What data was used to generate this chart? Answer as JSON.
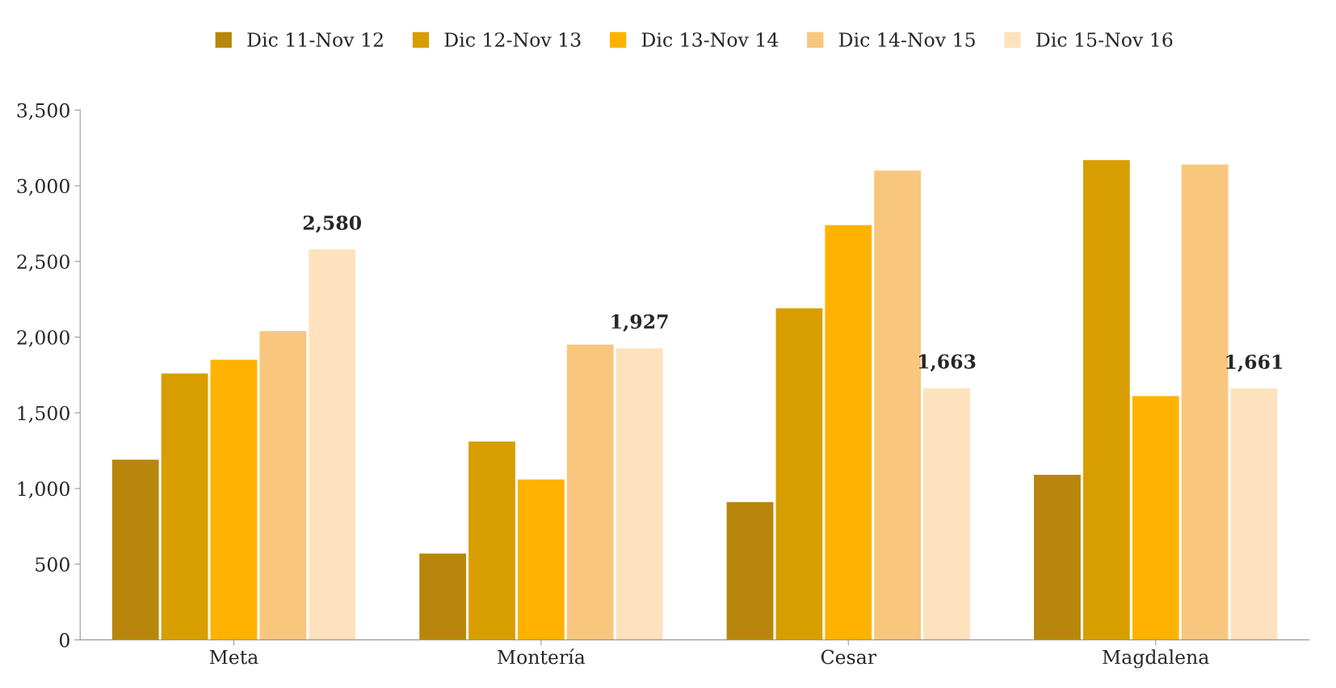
{
  "chart_data": {
    "type": "bar",
    "categories": [
      "Meta",
      "Montería",
      "Cesar",
      "Magdalena"
    ],
    "series": [
      {
        "name": "Dic 11-Nov 12",
        "color": "#b8860b",
        "values": [
          1190,
          570,
          910,
          1090
        ]
      },
      {
        "name": "Dic 12-Nov 13",
        "color": "#d89e00",
        "values": [
          1760,
          1310,
          2190,
          3170
        ]
      },
      {
        "name": "Dic 13-Nov 14",
        "color": "#ffb300",
        "values": [
          1850,
          1060,
          2740,
          1610
        ]
      },
      {
        "name": "Dic 14-Nov 15",
        "color": "#f9c67e",
        "values": [
          2040,
          1950,
          3100,
          3140
        ]
      },
      {
        "name": "Dic 15-Nov 16",
        "color": "#fde2bd",
        "values": [
          2580,
          1927,
          1663,
          1661
        ],
        "value_labels": [
          "2,580",
          "1,927",
          "1,663",
          "1,661"
        ]
      }
    ],
    "ylim": [
      0,
      3500
    ],
    "yticks": [
      {
        "value": 0,
        "label": "0"
      },
      {
        "value": 500,
        "label": "500"
      },
      {
        "value": 1000,
        "label": "1,000"
      },
      {
        "value": 1500,
        "label": "1,500"
      },
      {
        "value": 2000,
        "label": "2,000"
      },
      {
        "value": 2500,
        "label": "2,500"
      },
      {
        "value": 3000,
        "label": "3,000"
      },
      {
        "value": 3500,
        "label": "3,500"
      }
    ],
    "legend": "top"
  }
}
